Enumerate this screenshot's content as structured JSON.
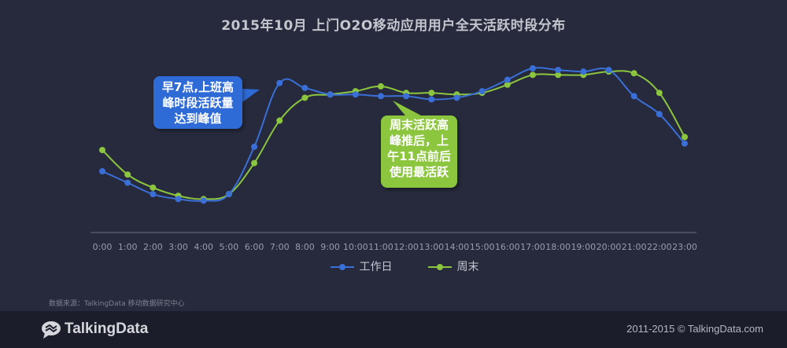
{
  "chart_data": {
    "type": "line",
    "title": "2015年10月  上门O2O移动应用用户全天活跃时段分布",
    "categories": [
      "0:00",
      "1:00",
      "2:00",
      "3:00",
      "4:00",
      "5:00",
      "6:00",
      "7:00",
      "8:00",
      "9:00",
      "10:00",
      "11:00",
      "12:00",
      "13:00",
      "14:00",
      "15:00",
      "16:00",
      "17:00",
      "18:00",
      "19:00",
      "20:00",
      "21:00",
      "22:00",
      "23:00"
    ],
    "series": [
      {
        "name": "工作日",
        "color": "#3a6fd8",
        "values": [
          37,
          30,
          23,
          20,
          19,
          23,
          52,
          91,
          88,
          84,
          84,
          83,
          83,
          81,
          82,
          86,
          93,
          100,
          99,
          98,
          99,
          83,
          72,
          54
        ]
      },
      {
        "name": "周末",
        "color": "#8cc63f",
        "values": [
          50,
          35,
          27,
          22,
          20,
          23,
          42,
          68,
          82,
          84,
          86,
          89,
          85,
          85,
          84,
          85,
          90,
          96,
          96,
          96,
          98,
          97,
          85,
          58
        ]
      }
    ],
    "ylim": [
      0,
      110
    ],
    "grid": false,
    "legend_position": "bottom-center"
  },
  "annotations": {
    "weekday": "早7点,上班高\n峰时段活跃量\n达到峰值",
    "weekend": "周末活跃高\n峰推后，上\n午11点前后\n使用最活跃"
  },
  "legend": {
    "weekday": "工作日",
    "weekend": "周末"
  },
  "source": "数据来源：TalkingData 移动数据研究中心",
  "footer": {
    "brand": "TalkingData",
    "copyright": "2011-2015 © TalkingData.com"
  },
  "colors": {
    "background": "#262a3c",
    "footer_bg": "#1b1e2a",
    "weekday": "#3a6fd8",
    "weekend": "#8cc63f",
    "axis": "#6d7080"
  }
}
